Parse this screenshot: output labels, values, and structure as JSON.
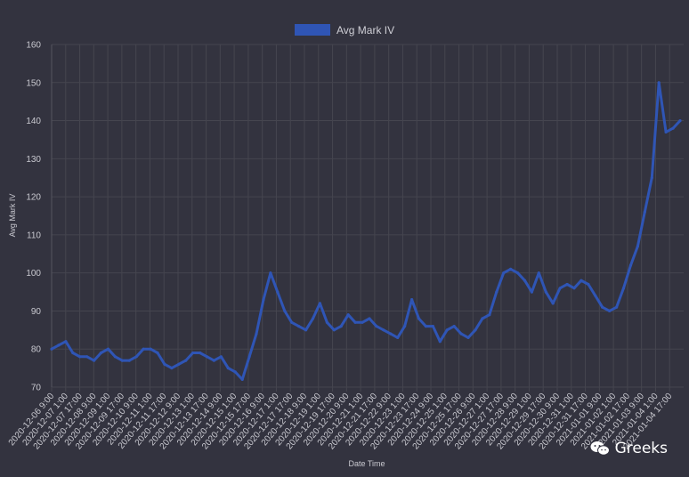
{
  "colors": {
    "background": "#33333f",
    "series": "#2f55b5",
    "grid": "#45454f"
  },
  "watermark": {
    "text": "Greeks",
    "icon": "wechat-icon"
  },
  "chart_data": {
    "type": "line",
    "legend": {
      "position": "top",
      "entries": [
        "Avg Mark IV"
      ]
    },
    "xlabel": "Date Time",
    "ylabel": "Avg Mark IV",
    "ylim": [
      70,
      160
    ],
    "yticks": [
      70,
      80,
      90,
      100,
      110,
      120,
      130,
      140,
      150,
      160
    ],
    "grid": true,
    "xticks": [
      "2020-12-06 9:00",
      "2020-12-07 1:00",
      "2020-12-07 17:00",
      "2020-12-08 9:00",
      "2020-12-09 1:00",
      "2020-12-09 17:00",
      "2020-12-10 9:00",
      "2020-12-11 1:00",
      "2020-12-11 17:00",
      "2020-12-12 9:00",
      "2020-12-13 1:00",
      "2020-12-13 17:00",
      "2020-12-14 9:00",
      "2020-12-15 1:00",
      "2020-12-15 17:00",
      "2020-12-16 9:00",
      "2020-12-17 1:00",
      "2020-12-17 17:00",
      "2020-12-18 9:00",
      "2020-12-19 1:00",
      "2020-12-19 17:00",
      "2020-12-20 9:00",
      "2020-12-21 1:00",
      "2020-12-21 17:00",
      "2020-12-22 9:00",
      "2020-12-23 1:00",
      "2020-12-23 17:00",
      "2020-12-24 9:00",
      "2020-12-25 1:00",
      "2020-12-25 17:00",
      "2020-12-26 9:00",
      "2020-12-27 1:00",
      "2020-12-27 17:00",
      "2020-12-28 9:00",
      "2020-12-29 1:00",
      "2020-12-29 17:00",
      "2020-12-30 9:00",
      "2020-12-31 1:00",
      "2020-12-31 17:00",
      "2021-01-01 9:00",
      "2021-01-02 1:00",
      "2021-01-02 17:00",
      "2021-01-03 9:00",
      "2021-01-04 1:00",
      "2021-01-04 17:00"
    ],
    "series": [
      {
        "name": "Avg Mark IV",
        "x": [
          "2020-12-06 9:00",
          "2020-12-06 17:00",
          "2020-12-07 1:00",
          "2020-12-07 9:00",
          "2020-12-07 17:00",
          "2020-12-08 1:00",
          "2020-12-08 9:00",
          "2020-12-08 17:00",
          "2020-12-09 1:00",
          "2020-12-09 9:00",
          "2020-12-09 17:00",
          "2020-12-10 1:00",
          "2020-12-10 9:00",
          "2020-12-10 17:00",
          "2020-12-11 1:00",
          "2020-12-11 9:00",
          "2020-12-11 17:00",
          "2020-12-12 1:00",
          "2020-12-12 9:00",
          "2020-12-12 17:00",
          "2020-12-13 1:00",
          "2020-12-13 9:00",
          "2020-12-13 17:00",
          "2020-12-14 1:00",
          "2020-12-14 9:00",
          "2020-12-14 17:00",
          "2020-12-15 1:00",
          "2020-12-15 9:00",
          "2020-12-15 17:00",
          "2020-12-16 1:00",
          "2020-12-16 9:00",
          "2020-12-16 17:00",
          "2020-12-17 1:00",
          "2020-12-17 9:00",
          "2020-12-17 17:00",
          "2020-12-18 1:00",
          "2020-12-18 9:00",
          "2020-12-18 17:00",
          "2020-12-19 1:00",
          "2020-12-19 9:00",
          "2020-12-19 17:00",
          "2020-12-20 1:00",
          "2020-12-20 9:00",
          "2020-12-20 17:00",
          "2020-12-21 1:00",
          "2020-12-21 9:00",
          "2020-12-21 17:00",
          "2020-12-22 1:00",
          "2020-12-22 9:00",
          "2020-12-22 17:00",
          "2020-12-23 1:00",
          "2020-12-23 9:00",
          "2020-12-23 17:00",
          "2020-12-24 1:00",
          "2020-12-24 9:00",
          "2020-12-24 17:00",
          "2020-12-25 1:00",
          "2020-12-25 9:00",
          "2020-12-25 17:00",
          "2020-12-26 1:00",
          "2020-12-26 9:00",
          "2020-12-26 17:00",
          "2020-12-27 1:00",
          "2020-12-27 9:00",
          "2020-12-27 17:00",
          "2020-12-28 1:00",
          "2020-12-28 9:00",
          "2020-12-28 17:00",
          "2020-12-29 1:00",
          "2020-12-29 9:00",
          "2020-12-29 17:00",
          "2020-12-30 1:00",
          "2020-12-30 9:00",
          "2020-12-30 17:00",
          "2020-12-31 1:00",
          "2020-12-31 9:00",
          "2020-12-31 17:00",
          "2021-01-01 1:00",
          "2021-01-01 9:00",
          "2021-01-01 17:00",
          "2021-01-02 1:00",
          "2021-01-02 9:00",
          "2021-01-02 17:00",
          "2021-01-03 1:00",
          "2021-01-03 9:00",
          "2021-01-03 17:00",
          "2021-01-04 1:00",
          "2021-01-04 9:00",
          "2021-01-04 17:00",
          "2021-01-05 1:00"
        ],
        "values": [
          80,
          81,
          82,
          79,
          78,
          78,
          77,
          79,
          80,
          78,
          77,
          77,
          78,
          80,
          80,
          79,
          76,
          75,
          76,
          77,
          79,
          79,
          78,
          77,
          78,
          75,
          74,
          72,
          78,
          84,
          93,
          100,
          95,
          90,
          87,
          86,
          85,
          88,
          92,
          87,
          85,
          86,
          89,
          87,
          87,
          88,
          86,
          85,
          84,
          83,
          86,
          93,
          88,
          86,
          86,
          82,
          85,
          86,
          84,
          83,
          85,
          88,
          89,
          95,
          100,
          101,
          100,
          98,
          95,
          100,
          95,
          92,
          96,
          97,
          96,
          98,
          97,
          94,
          91,
          90,
          91,
          96,
          102,
          107,
          116,
          125,
          150,
          137,
          138,
          140
        ]
      }
    ]
  }
}
